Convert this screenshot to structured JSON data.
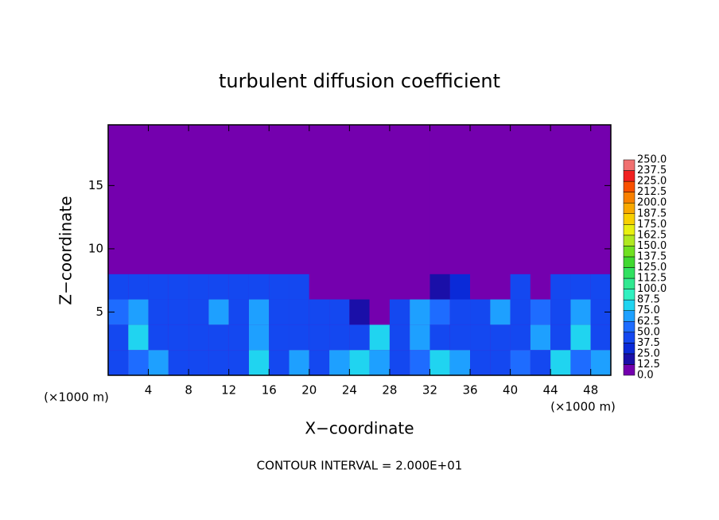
{
  "chart_data": {
    "type": "heatmap",
    "title": "turbulent diffusion coefficient",
    "x_label": "X−coordinate",
    "y_label": "Z−coordinate",
    "x_unit": "(×1000 m)",
    "y_unit": "(×1000 m)",
    "annotation": "CONTOUR INTERVAL = 2.000E+01",
    "xlim": [
      0,
      50
    ],
    "ylim": [
      0,
      19.8
    ],
    "xticks": [
      4,
      8,
      12,
      16,
      20,
      24,
      28,
      32,
      36,
      40,
      44,
      48
    ],
    "yticks": [
      5,
      10,
      15
    ],
    "x": [
      1,
      3,
      5,
      7,
      9,
      11,
      13,
      15,
      17,
      19,
      21,
      23,
      25,
      27,
      29,
      31,
      33,
      35,
      37,
      39,
      41,
      43,
      45,
      47,
      49
    ],
    "y": [
      1,
      3,
      5,
      7,
      9,
      11,
      13,
      15,
      17,
      19
    ],
    "z": [
      [
        45,
        50,
        70,
        45,
        40,
        45,
        40,
        75,
        45,
        70,
        45,
        70,
        80,
        70,
        45,
        50,
        75,
        70,
        45,
        45,
        50,
        40,
        80,
        50,
        70
      ],
      [
        45,
        75,
        45,
        40,
        40,
        45,
        40,
        70,
        40,
        45,
        45,
        40,
        40,
        75,
        45,
        70,
        45,
        45,
        40,
        45,
        40,
        70,
        40,
        75,
        45
      ],
      [
        50,
        70,
        45,
        40,
        45,
        70,
        40,
        70,
        40,
        40,
        40,
        45,
        20,
        10,
        45,
        70,
        50,
        45,
        45,
        70,
        45,
        50,
        45,
        70,
        40
      ],
      [
        40,
        45,
        40,
        45,
        40,
        40,
        40,
        45,
        40,
        40,
        10,
        5,
        0,
        0,
        0,
        0,
        20,
        30,
        5,
        0,
        40,
        0,
        40,
        45,
        40
      ],
      [
        0,
        0,
        0,
        0,
        0,
        0,
        0,
        0,
        0,
        0,
        0,
        0,
        0,
        0,
        0,
        0,
        0,
        0,
        0,
        0,
        0,
        0,
        0,
        0,
        0
      ],
      [
        0,
        0,
        0,
        0,
        0,
        0,
        0,
        0,
        0,
        0,
        0,
        0,
        0,
        0,
        0,
        0,
        0,
        0,
        0,
        0,
        0,
        0,
        0,
        0,
        0
      ],
      [
        0,
        0,
        0,
        0,
        0,
        0,
        0,
        0,
        0,
        0,
        0,
        0,
        0,
        0,
        0,
        0,
        0,
        0,
        0,
        0,
        0,
        0,
        0,
        0,
        0
      ],
      [
        0,
        0,
        0,
        0,
        0,
        0,
        0,
        0,
        0,
        0,
        0,
        0,
        0,
        0,
        0,
        0,
        0,
        0,
        0,
        0,
        0,
        0,
        0,
        0,
        0
      ],
      [
        0,
        0,
        0,
        0,
        0,
        0,
        0,
        0,
        0,
        0,
        0,
        0,
        0,
        0,
        0,
        0,
        0,
        0,
        0,
        0,
        0,
        0,
        0,
        0,
        0
      ],
      [
        0,
        0,
        0,
        0,
        0,
        0,
        0,
        0,
        0,
        0,
        0,
        0,
        0,
        0,
        0,
        0,
        0,
        0,
        0,
        0,
        0,
        0,
        0,
        0,
        0
      ]
    ],
    "levels": [
      {
        "value": 0,
        "label": "0.0"
      },
      {
        "value": 12.5,
        "label": "12.5"
      },
      {
        "value": 25,
        "label": "25.0"
      },
      {
        "value": 37.5,
        "label": "37.5"
      },
      {
        "value": 50,
        "label": "50.0"
      },
      {
        "value": 62.5,
        "label": "62.5"
      },
      {
        "value": 75,
        "label": "75.0"
      },
      {
        "value": 87.5,
        "label": "87.5"
      },
      {
        "value": 100,
        "label": "100.0"
      },
      {
        "value": 112.5,
        "label": "112.5"
      },
      {
        "value": 125,
        "label": "125.0"
      },
      {
        "value": 137.5,
        "label": "137.5"
      },
      {
        "value": 150,
        "label": "150.0"
      },
      {
        "value": 162.5,
        "label": "162.5"
      },
      {
        "value": 175,
        "label": "175.0"
      },
      {
        "value": 187.5,
        "label": "187.5"
      },
      {
        "value": 200,
        "label": "200.0"
      },
      {
        "value": 212.5,
        "label": "212.5"
      },
      {
        "value": 225,
        "label": "225.0"
      },
      {
        "value": 237.5,
        "label": "237.5"
      },
      {
        "value": 250,
        "label": "250.0"
      }
    ],
    "colors": [
      "#7400ae",
      "#1a0fa8",
      "#0a2ad8",
      "#1448f0",
      "#1e6cff",
      "#1ea0ff",
      "#20d4f0",
      "#30f0c0",
      "#30e890",
      "#30e060",
      "#40d830",
      "#70e020",
      "#b0e820",
      "#e8f010",
      "#f8d000",
      "#f8a800",
      "#f88000",
      "#f85000",
      "#f02020",
      "#f07070"
    ]
  }
}
